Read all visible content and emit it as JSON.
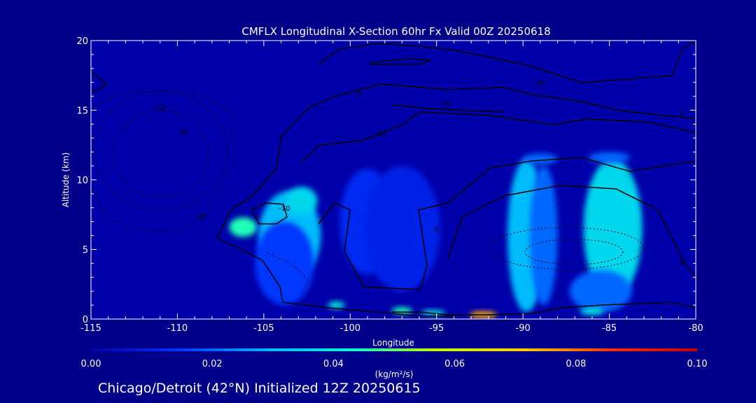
{
  "chart_data": {
    "type": "heatmap",
    "title": "CMFLX Longitudinal X-Section 60hr  Fx Valid 00Z 20250618",
    "xlabel": "Longitude",
    "ylabel": "Altitude (km)",
    "xlim": [
      -115,
      -80
    ],
    "ylim": [
      0,
      20
    ],
    "x_ticks": [
      "-115",
      "-110",
      "-105",
      "-100",
      "-95",
      "-90",
      "-85",
      "-80"
    ],
    "x_tick_values": [
      -115,
      -110,
      -105,
      -100,
      -95,
      -90,
      -85,
      -80
    ],
    "y_ticks": [
      "0",
      "5",
      "10",
      "15",
      "20"
    ],
    "y_tick_values": [
      0,
      5,
      10,
      15,
      20
    ],
    "colorbar": {
      "label": "(kg/m²/s)",
      "range": [
        0,
        0.1
      ],
      "tick_labels": [
        "0.00",
        "0.02",
        "0.04",
        "0.06",
        "0.08",
        "0.10"
      ],
      "tick_values": [
        0,
        0.02,
        0.04,
        0.06,
        0.08,
        0.1
      ],
      "colors": [
        "#0000aa",
        "#0033ff",
        "#00b4ff",
        "#00ffd5",
        "#c8ff00",
        "#ffd000",
        "#ff3000",
        "#c80000"
      ]
    },
    "shaded_regions": [
      {
        "lon": -106.2,
        "alt": 6.6,
        "dlon": 0.8,
        "dalt": 0.7,
        "value": 0.045
      },
      {
        "lon": -103.4,
        "alt": 7.6,
        "dlon": 1.1,
        "dalt": 1.0,
        "value": 0.05
      },
      {
        "lon": -103.5,
        "alt": 6.0,
        "dlon": 1.8,
        "dalt": 3.2,
        "value": 0.03
      },
      {
        "lon": -103.8,
        "alt": 4.0,
        "dlon": 1.7,
        "dalt": 3.0,
        "value": 0.015
      },
      {
        "lon": -102.8,
        "alt": 8.5,
        "dlon": 0.9,
        "dalt": 1.0,
        "value": 0.035
      },
      {
        "lon": -99.0,
        "alt": 7.0,
        "dlon": 1.6,
        "dalt": 3.8,
        "value": 0.012
      },
      {
        "lon": -97.0,
        "alt": 6.5,
        "dlon": 2.2,
        "dalt": 4.5,
        "value": 0.01
      },
      {
        "lon": -89.8,
        "alt": 6.0,
        "dlon": 1.1,
        "dalt": 5.5,
        "value": 0.03
      },
      {
        "lon": -88.8,
        "alt": 6.0,
        "dlon": 0.8,
        "dalt": 5.0,
        "value": 0.02
      },
      {
        "lon": -84.8,
        "alt": 6.5,
        "dlon": 1.7,
        "dalt": 5.0,
        "value": 0.035
      },
      {
        "lon": -85.5,
        "alt": 2.0,
        "dlon": 1.8,
        "dalt": 1.5,
        "value": 0.02
      },
      {
        "lon": -89.0,
        "alt": 11.5,
        "dlon": 1.0,
        "dalt": 0.4,
        "value": 0.02
      },
      {
        "lon": -85.0,
        "alt": 11.6,
        "dlon": 1.2,
        "dalt": 0.4,
        "value": 0.02
      },
      {
        "lon": -100.8,
        "alt": 1.0,
        "dlon": 0.5,
        "dalt": 0.25,
        "value": 0.04
      },
      {
        "lon": -97.0,
        "alt": 0.6,
        "dlon": 0.6,
        "dalt": 0.25,
        "value": 0.045
      },
      {
        "lon": -92.3,
        "alt": 0.3,
        "dlon": 0.8,
        "dalt": 0.25,
        "value": 0.075
      },
      {
        "lon": -95.2,
        "alt": 0.45,
        "dlon": 0.7,
        "dalt": 0.2,
        "value": 0.04
      },
      {
        "lon": -86.0,
        "alt": 0.55,
        "dlon": 0.7,
        "dalt": 0.25,
        "value": 0.04
      }
    ],
    "contour_labels": [
      {
        "text": "0",
        "lon": -99.5,
        "alt": 16.0
      },
      {
        "text": "0",
        "lon": -93.0,
        "alt": 20.0
      },
      {
        "text": "0",
        "lon": -95.0,
        "alt": 6.3
      },
      {
        "text": "0",
        "lon": -80.8,
        "alt": 14.6
      },
      {
        "text": "0",
        "lon": -80.8,
        "alt": 3.9
      },
      {
        "text": "-10",
        "lon": -94.5,
        "alt": 15.3
      },
      {
        "text": "-10",
        "lon": -98.2,
        "alt": 13.2
      },
      {
        "text": "10",
        "lon": -89.0,
        "alt": 16.8
      },
      {
        "text": "-10",
        "lon": -103.8,
        "alt": 7.8
      },
      {
        "text": "-10",
        "lon": -108.7,
        "alt": 7.2
      },
      {
        "text": "-10",
        "lon": -111.0,
        "alt": 15.0
      },
      {
        "text": "-20",
        "lon": -109.7,
        "alt": 13.3
      }
    ]
  },
  "footer": {
    "caption": "Chicago/Detroit (42°N) Initialized 12Z 20250615"
  }
}
